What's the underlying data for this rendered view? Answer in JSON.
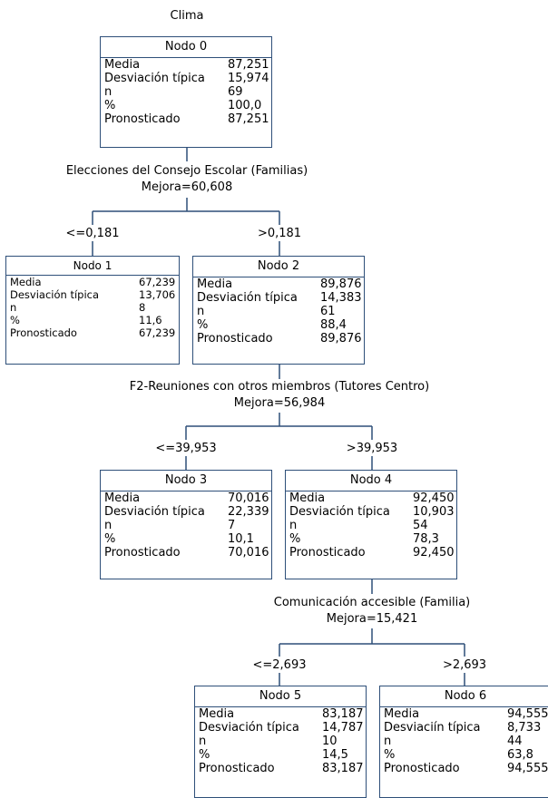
{
  "target": "Clima",
  "labels": {
    "media": "Media",
    "desviacion": "Desviación típica",
    "desviacion_n6": "Desviaciín típica",
    "n": "n",
    "pct": "%",
    "pronosticado": "Pronosticado"
  },
  "nodes": [
    {
      "title": "Nodo 0",
      "media": "87,251",
      "desv": "15,974",
      "n": "69",
      "pct": "100,0",
      "pron": "87,251"
    },
    {
      "title": "Nodo 1",
      "media": "67,239",
      "desv": "13,706",
      "n": "8",
      "pct": "11,6",
      "pron": "67,239"
    },
    {
      "title": "Nodo 2",
      "media": "89,876",
      "desv": "14,383",
      "n": "61",
      "pct": "88,4",
      "pron": "89,876"
    },
    {
      "title": "Nodo 3",
      "media": "70,016",
      "desv": "22,339",
      "n": "7",
      "pct": "10,1",
      "pron": "70,016"
    },
    {
      "title": "Nodo 4",
      "media": "92,450",
      "desv": "10,903",
      "n": "54",
      "pct": "78,3",
      "pron": "92,450"
    },
    {
      "title": "Nodo 5",
      "media": "83,187",
      "desv": "14,787",
      "n": "10",
      "pct": "14,5",
      "pron": "83,187"
    },
    {
      "title": "Nodo 6",
      "media": "94,555",
      "desv": "8,733",
      "n": "44",
      "pct": "63,8",
      "pron": "94,555"
    }
  ],
  "splits": [
    {
      "variable": "Elecciones del Consejo Escolar (Familias)",
      "mejora": "Mejora=60,608",
      "left": "<=0,181",
      "right": ">0,181"
    },
    {
      "variable": "F2-Reuniones con otros miembros (Tutores Centro)",
      "mejora": "Mejora=56,984",
      "left": "<=39,953",
      "right": ">39,953"
    },
    {
      "variable": "Comunicación accesible (Familia)",
      "mejora": "Mejora=15,421",
      "left": "<=2,693",
      "right": ">2,693"
    }
  ],
  "colors": {
    "border": "#2e4f79",
    "line": "#2e4f79"
  }
}
